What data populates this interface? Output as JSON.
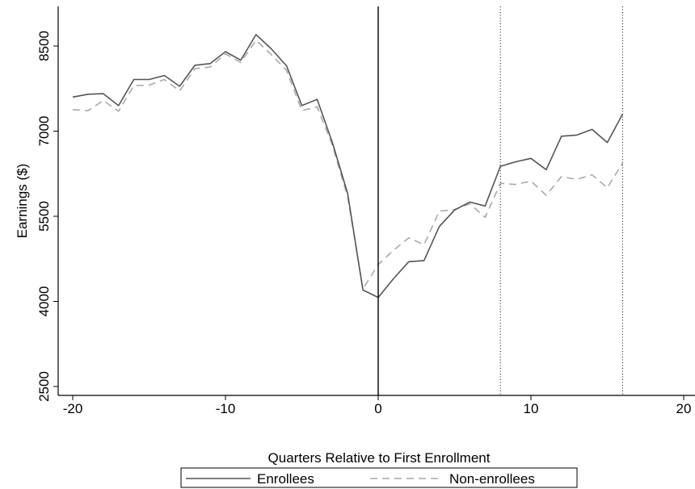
{
  "chart_data": {
    "type": "line",
    "title": "",
    "xlabel": "Quarters Relative to First Enrollment",
    "ylabel": "Earnings ($)",
    "xlim": [
      -20,
      20
    ],
    "ylim": [
      2500,
      8750
    ],
    "xticks": [
      -20,
      -10,
      0,
      10,
      20
    ],
    "xtick_labels": [
      "-20",
      "-10",
      "0",
      "10",
      "20"
    ],
    "yticks": [
      2500,
      4000,
      5500,
      7000,
      8500
    ],
    "ytick_labels": [
      "2500",
      "4000",
      "5500",
      "7000",
      "8500"
    ],
    "grid": false,
    "legend_position": "bottom",
    "reference_lines": [
      {
        "axis": "x",
        "value": 0,
        "style": "solid"
      },
      {
        "axis": "x",
        "value": 8,
        "style": "dotted"
      },
      {
        "axis": "x",
        "value": 16,
        "style": "dotted"
      }
    ],
    "x": [
      -20,
      -19,
      -18,
      -17,
      -16,
      -15,
      -14,
      -13,
      -12,
      -11,
      -10,
      -9,
      -8,
      -7,
      -6,
      -5,
      -4,
      -3,
      -2,
      -1,
      0,
      1,
      2,
      3,
      4,
      5,
      6,
      7,
      8,
      9,
      10,
      11,
      12,
      13,
      14,
      15,
      16
    ],
    "series": [
      {
        "name": "Enrollees",
        "color": "#555555",
        "style": "solid",
        "values": [
          7600,
          7650,
          7660,
          7450,
          7910,
          7910,
          7980,
          7790,
          8160,
          8190,
          8400,
          8250,
          8700,
          8450,
          8150,
          7450,
          7560,
          6800,
          5900,
          4200,
          4070,
          4400,
          4700,
          4720,
          5320,
          5610,
          5750,
          5680,
          6380,
          6460,
          6520,
          6320,
          6910,
          6930,
          7030,
          6800,
          7300
        ],
        "visible_x_max": 16
      },
      {
        "name": "Non-enrollees",
        "color": "#aaaaaa",
        "style": "dashed",
        "values": [
          7380,
          7360,
          7540,
          7350,
          7800,
          7810,
          7910,
          7710,
          8100,
          8130,
          8360,
          8210,
          8600,
          8350,
          8070,
          7360,
          7430,
          6750,
          5840,
          4220,
          4650,
          4900,
          5120,
          5000,
          5590,
          5620,
          5720,
          5480,
          6080,
          6060,
          6120,
          5870,
          6200,
          6150,
          6230,
          6000,
          6440
        ],
        "visible_x_max": 16
      }
    ]
  }
}
